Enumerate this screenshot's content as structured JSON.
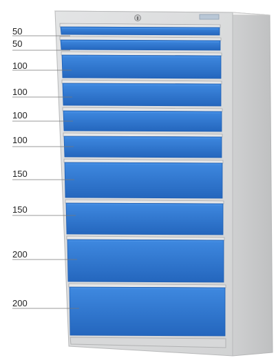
{
  "cabinet": {
    "colors": {
      "body": "#d9dadb",
      "body_side": "#c9cacb",
      "body_top": "#eeeeee",
      "drawer_front": "#2f78d2",
      "drawer_front_light": "#4a92e6",
      "drawer_front_dark": "#1f5fb3",
      "handle_rail": "#e6e7e8",
      "label_line": "#777777",
      "label_text": "#222222"
    },
    "icons": {
      "lock": "keyhole-lock-icon",
      "badge": "nameplate-badge"
    },
    "drawers": [
      {
        "label": "50"
      },
      {
        "label": "50"
      },
      {
        "label": "100"
      },
      {
        "label": "100"
      },
      {
        "label": "100"
      },
      {
        "label": "100"
      },
      {
        "label": "150"
      },
      {
        "label": "150"
      },
      {
        "label": "200"
      },
      {
        "label": "200"
      }
    ]
  }
}
